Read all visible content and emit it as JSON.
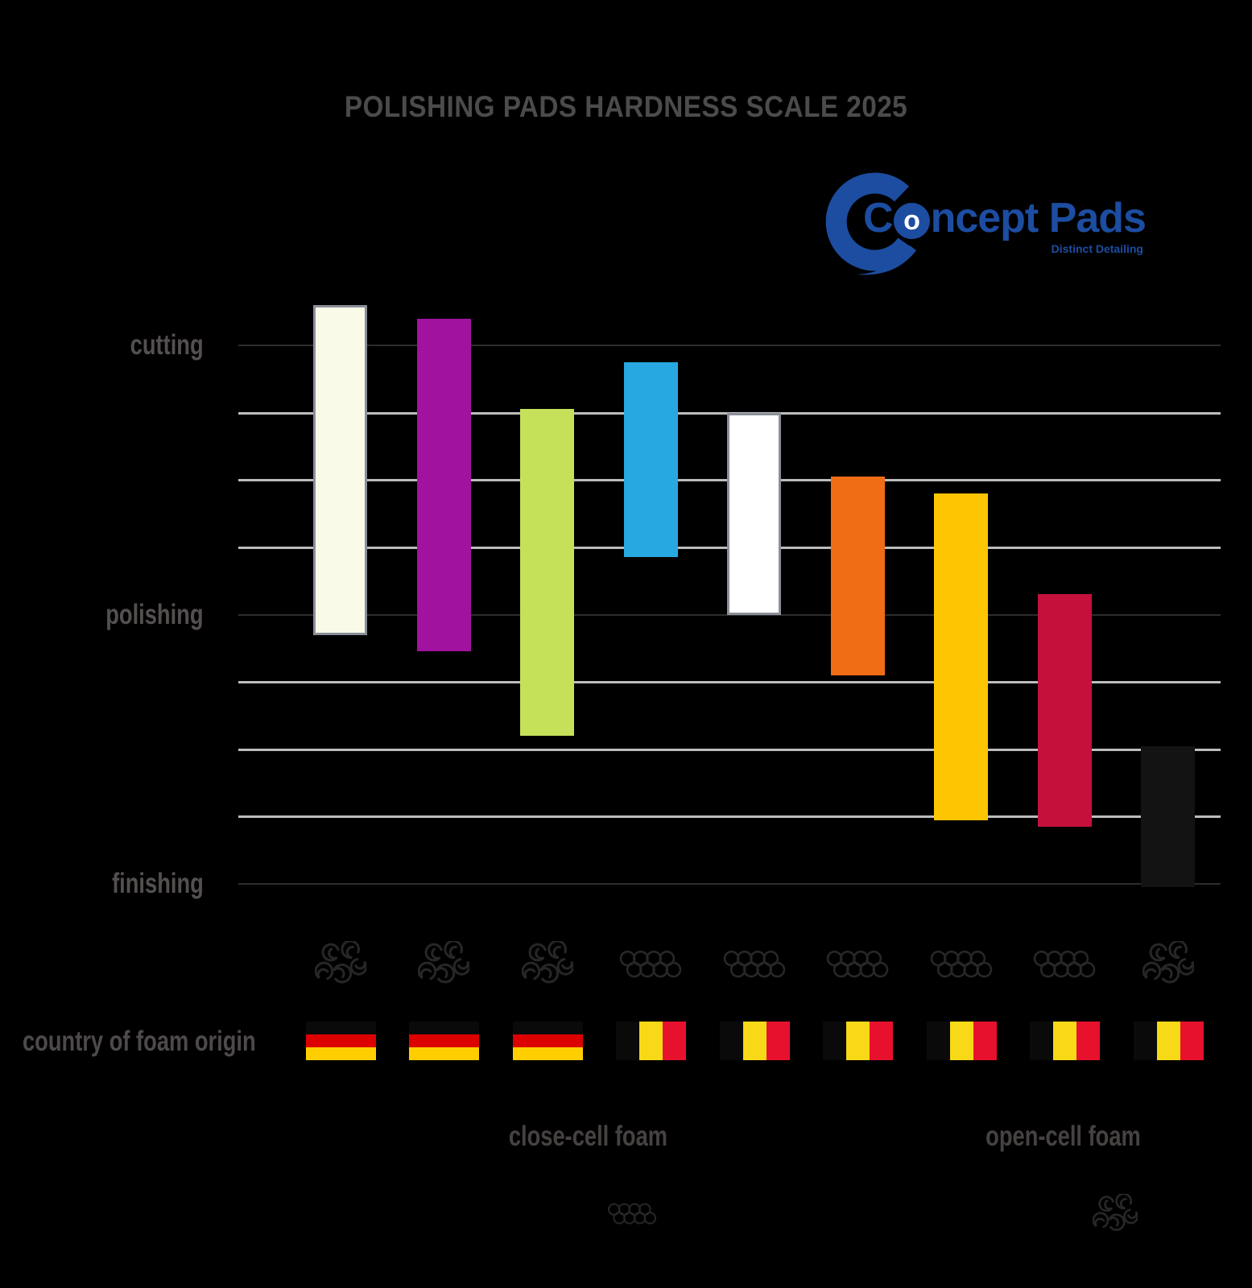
{
  "title": "POLISHING PADS HARDNESS SCALE 2025",
  "logo": {
    "brand": "Concept Pads",
    "brand_c": "C",
    "brand_o": "o",
    "brand_rest": "ncept Pads",
    "tagline": "Distinct Detailing",
    "blue": "#1c4da1"
  },
  "row_label": "country of foam origin",
  "legend": [
    {
      "label": "close-cell foam",
      "icon": "closed-cell-icon"
    },
    {
      "label": "open-cell foam",
      "icon": "open-cell-icon"
    }
  ],
  "chart_data": {
    "type": "bar",
    "subtype": "floating-range-columns",
    "title": "POLISHING PADS HARDNESS SCALE 2025",
    "grid": true,
    "gridline_step": 1,
    "ylim": [
      0,
      8
    ],
    "y_axis_labels": [
      {
        "text": "cutting",
        "value": 8
      },
      {
        "text": "polishing",
        "value": 4
      },
      {
        "text": "finishing",
        "value": 0
      }
    ],
    "series": [
      {
        "pad": 1,
        "color": "#fafae8",
        "border": "#8a8f99",
        "hardness_range": [
          3.7,
          8.6
        ],
        "foam": "open-cell",
        "foam_origin": "Germany"
      },
      {
        "pad": 2,
        "color": "#a1129e",
        "hardness_range": [
          3.45,
          8.4
        ],
        "foam": "open-cell",
        "foam_origin": "Germany"
      },
      {
        "pad": 3,
        "color": "#c4e159",
        "hardness_range": [
          2.2,
          7.05
        ],
        "foam": "open-cell",
        "foam_origin": "Germany"
      },
      {
        "pad": 4,
        "color": "#27a8e0",
        "hardness_range": [
          4.85,
          7.75
        ],
        "foam": "close-cell",
        "foam_origin": "Belgium"
      },
      {
        "pad": 5,
        "color": "#ffffff",
        "border": "#8a8f99",
        "hardness_range": [
          4.0,
          7.0
        ],
        "foam": "close-cell",
        "foam_origin": "Belgium"
      },
      {
        "pad": 6,
        "color": "#f06c15",
        "hardness_range": [
          3.1,
          6.05
        ],
        "foam": "close-cell",
        "foam_origin": "Belgium"
      },
      {
        "pad": 7,
        "color": "#fec602",
        "hardness_range": [
          0.95,
          5.8
        ],
        "foam": "close-cell",
        "foam_origin": "Belgium"
      },
      {
        "pad": 8,
        "color": "#c5103c",
        "hardness_range": [
          0.85,
          4.3
        ],
        "foam": "close-cell",
        "foam_origin": "Belgium"
      },
      {
        "pad": 9,
        "color": "#131313",
        "hardness_range": [
          -0.05,
          2.05
        ],
        "foam": "open-cell",
        "foam_origin": "Belgium"
      }
    ]
  },
  "flags": {
    "germany": {
      "orientation": "horizontal",
      "stripes": [
        "#0a0a0a",
        "#dd0000",
        "#ffce00"
      ]
    },
    "belgium": {
      "orientation": "vertical",
      "stripes": [
        "#0a0a0a",
        "#f7d917",
        "#e8112d"
      ]
    }
  },
  "colors": {
    "background": "#000000",
    "title_text": "#4b4b4b",
    "label_text": "#555050",
    "gridline_light": "#bdbdbd",
    "gridline_dark": "#2d2d2d",
    "foam_icon": "#272727"
  }
}
